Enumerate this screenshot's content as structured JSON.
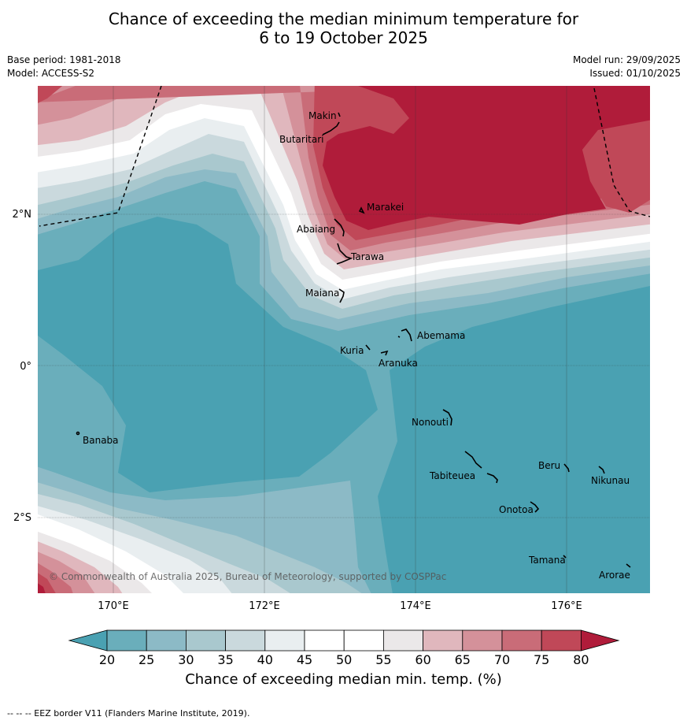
{
  "title": {
    "line1": "Chance of exceeding the median minimum temperature for",
    "line2": "6 to 19 October 2025"
  },
  "meta": {
    "base_period": "Base period: 1981-2018",
    "model": "Model: ACCESS-S2",
    "model_run": "Model run: 29/09/2025",
    "issued": "Issued: 01/10/2025"
  },
  "axes": {
    "lon_ticks": [
      "170°E",
      "172°E",
      "174°E",
      "176°E"
    ],
    "lat_ticks": [
      "2°N",
      "0°",
      "2°S"
    ]
  },
  "places": [
    "Makin",
    "Butaritari",
    "Marakei",
    "Abaiang",
    "Tarawa",
    "Maiana",
    "Abemama",
    "Kuria",
    "Aranuka",
    "Nonouti",
    "Banaba",
    "Beru",
    "Nikunau",
    "Tabiteuea",
    "Onotoa",
    "Tamana",
    "Arorae"
  ],
  "copyright": "© Commonwealth of Australia 2025, Bureau of Meteorology, supported by COSPPac",
  "colorbar": {
    "title": "Chance of exceeding median min. temp. (%)",
    "tick_labels": [
      "20",
      "25",
      "30",
      "35",
      "40",
      "45",
      "50",
      "55",
      "60",
      "65",
      "70",
      "75",
      "80"
    ],
    "colors": {
      "lt20": "#4aa1b2",
      "b20_25": "#6aaebb",
      "b25_30": "#8cbac6",
      "b30_35": "#a9c8ce",
      "b35_40": "#cad9dd",
      "b40_45": "#e9eef0",
      "b45_50": "#ffffff",
      "b50_55": "#ffffff",
      "b55_60": "#ebe8e9",
      "b60_65": "#e0b7bd",
      "b65_70": "#d4919a",
      "b70_75": "#c96c78",
      "b75_80": "#c04858",
      "gt80": "#b01c3a"
    }
  },
  "footer": "--  --  -- EEZ border V11 (Flanders Marine Institute, 2019)."
}
